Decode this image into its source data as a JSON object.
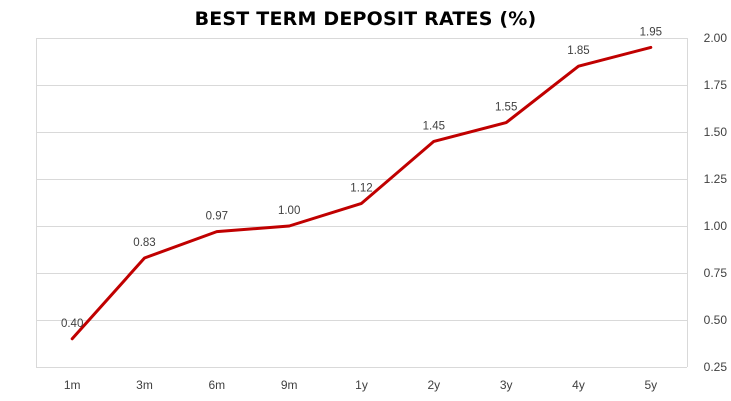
{
  "chart_data": {
    "type": "line",
    "title": "BEST TERM DEPOSIT RATES (%)",
    "categories": [
      "1m",
      "3m",
      "6m",
      "9m",
      "1y",
      "2y",
      "3y",
      "4y",
      "5y"
    ],
    "series": [
      {
        "values": [
          0.4,
          0.83,
          0.97,
          1.0,
          1.12,
          1.45,
          1.55,
          1.85,
          1.95
        ],
        "color": "#c00000"
      }
    ],
    "data_labels": [
      "0.40",
      "0.83",
      "0.97",
      "1.00",
      "1.12",
      "1.45",
      "1.55",
      "1.85",
      "1.95"
    ],
    "y_ticks": [
      0.25,
      0.5,
      0.75,
      1.0,
      1.25,
      1.5,
      1.75,
      2.0
    ],
    "y_tick_labels": [
      "0.25",
      "0.50",
      "0.75",
      "1.00",
      "1.25",
      "1.50",
      "1.75",
      "2.00"
    ],
    "ylim": [
      0.25,
      2.0
    ],
    "y_axis_side": "right",
    "grid": true,
    "legend": "none",
    "grid_color": "#d9d9d9"
  }
}
